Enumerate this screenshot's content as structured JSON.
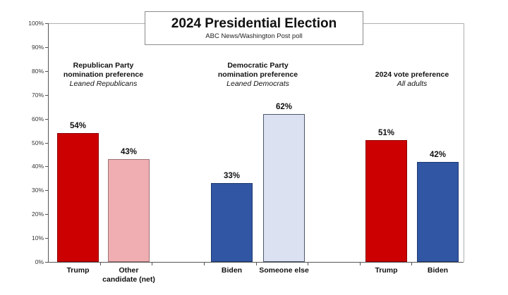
{
  "title_box": {
    "title": "2024 Presidential Election",
    "subtitle": "ABC News/Washington Post poll"
  },
  "colors": {
    "republican_red": "#cc0000",
    "republican_red_border": "#8f0000",
    "other_pink": "#f0aeb2",
    "other_pink_border": "#9c7074",
    "democrat_blue": "#3056a4",
    "democrat_blue_border": "#1e3a70",
    "someone_else_lightblue": "#dbe1f1",
    "someone_else_lightblue_border": "#4d586c"
  },
  "chart_data": {
    "type": "bar",
    "title": "2024 Presidential Election",
    "subtitle": "ABC News/Washington Post poll",
    "y_axis": {
      "min": 0,
      "max": 100,
      "step": 10,
      "suffix": "%",
      "grid": false
    },
    "value_suffix": "%",
    "legend": "none",
    "groups": [
      {
        "header": "Republican Party\nnomination preference",
        "subheader": "Leaned Republicans",
        "bars": [
          {
            "label": "Trump",
            "value": 54,
            "fill": "#cc0000",
            "border": "#8f0000"
          },
          {
            "label": "Other\ncandidate (net)",
            "value": 43,
            "fill": "#f0aeb2",
            "border": "#9c7074"
          }
        ]
      },
      {
        "header": "Democratic Party\nnomination preference",
        "subheader": "Leaned Democrats",
        "bars": [
          {
            "label": "Biden",
            "value": 33,
            "fill": "#3056a4",
            "border": "#1e3a70"
          },
          {
            "label": "Someone else",
            "value": 62,
            "fill": "#dbe1f1",
            "border": "#4d586c"
          }
        ]
      },
      {
        "header": "2024 vote preference",
        "subheader": "All adults",
        "bars": [
          {
            "label": "Trump",
            "value": 51,
            "fill": "#cc0000",
            "border": "#8f0000"
          },
          {
            "label": "Biden",
            "value": 42,
            "fill": "#3056a4",
            "border": "#1e3a70"
          }
        ]
      }
    ]
  }
}
